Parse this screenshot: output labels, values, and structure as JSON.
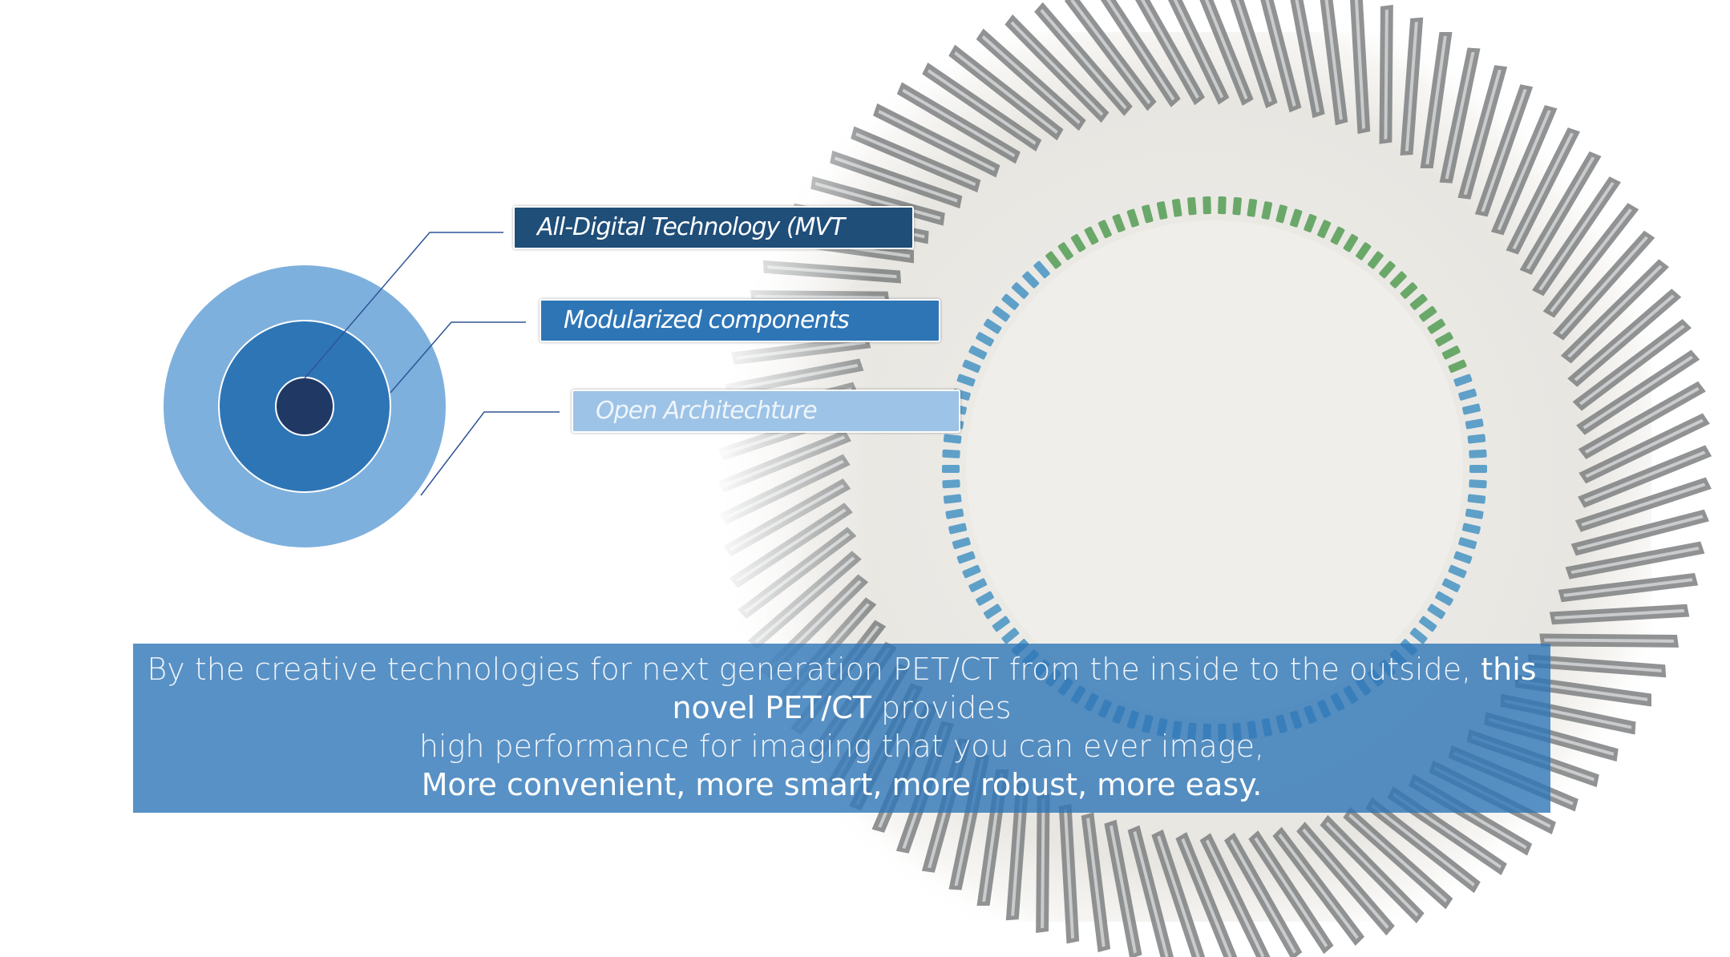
{
  "diagram": {
    "labels": [
      {
        "text": "All-Digital Technology  (MVT",
        "fill": "#1f4e79"
      },
      {
        "text": "Modularized components",
        "fill": "#2e75b6"
      },
      {
        "text": "Open Architechture",
        "fill": "#9dc3e6"
      }
    ],
    "rings": {
      "outer": "#7eb0dd",
      "middle": "#2e75b6",
      "core": "#203864",
      "line": "#2f5597"
    }
  },
  "banner": {
    "line1_light": "By the creative technologies for next generation PET/CT from the inside to the outside, ",
    "line1_bold": "this",
    "line2_bold": "novel PET/CT",
    "line2_light": " provides",
    "line3": "high performance for imaging that you can ever image,",
    "line4": "More convenient, more smart, more robust, more easy."
  },
  "photo": {
    "subject": "PET/CT detector ring render",
    "colors": {
      "background": "#eceae4",
      "module": "#7d7f80",
      "crystal": "#5fa0c8",
      "crystal_green": "#6aa86a"
    }
  }
}
